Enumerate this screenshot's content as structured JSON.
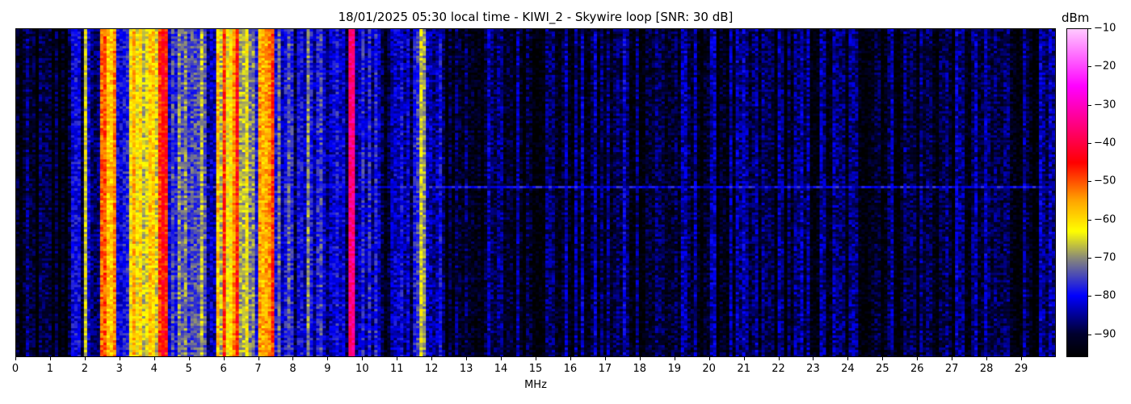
{
  "chart_data": {
    "type": "heatmap",
    "title": "18/01/2025 05:30 local time - KIWI_2 - Skywire loop [SNR: 30 dB]",
    "xlabel": "MHz",
    "ylabel": "",
    "xlim": [
      0,
      30
    ],
    "x_ticks": [
      "0",
      "1",
      "2",
      "3",
      "4",
      "5",
      "6",
      "7",
      "8",
      "9",
      "10",
      "11",
      "12",
      "13",
      "14",
      "15",
      "16",
      "17",
      "18",
      "19",
      "20",
      "21",
      "22",
      "23",
      "24",
      "25",
      "26",
      "27",
      "28",
      "29"
    ],
    "colorbar": {
      "label": "dBm",
      "range": [
        -96,
        -10
      ],
      "ticks": [
        "-10",
        "-20",
        "-30",
        "-40",
        "-50",
        "-60",
        "-70",
        "-80",
        "-90"
      ],
      "colormap": [
        {
          "dbm": -96,
          "color": "#000000"
        },
        {
          "dbm": -90,
          "color": "#00002e"
        },
        {
          "dbm": -80,
          "color": "#0000ff"
        },
        {
          "dbm": -70,
          "color": "#8a8a78"
        },
        {
          "dbm": -63,
          "color": "#ffff00"
        },
        {
          "dbm": -55,
          "color": "#ffa500"
        },
        {
          "dbm": -45,
          "color": "#ff0000"
        },
        {
          "dbm": -35,
          "color": "#ff0080"
        },
        {
          "dbm": -25,
          "color": "#ff00ff"
        },
        {
          "dbm": -10,
          "color": "#ffc8ff"
        }
      ]
    },
    "frequency_profile_dbm": [
      {
        "from": 0.0,
        "to": 1.5,
        "level": -93
      },
      {
        "from": 1.5,
        "to": 2.4,
        "level": -85
      },
      {
        "from": 2.4,
        "to": 2.9,
        "level": -57
      },
      {
        "from": 2.9,
        "to": 3.3,
        "level": -76
      },
      {
        "from": 3.3,
        "to": 4.1,
        "level": -63
      },
      {
        "from": 4.1,
        "to": 4.4,
        "level": -49
      },
      {
        "from": 4.4,
        "to": 4.6,
        "level": -76
      },
      {
        "from": 4.6,
        "to": 5.5,
        "level": -73
      },
      {
        "from": 5.5,
        "to": 5.8,
        "level": -79
      },
      {
        "from": 5.8,
        "to": 6.2,
        "level": -60
      },
      {
        "from": 6.2,
        "to": 6.4,
        "level": -50
      },
      {
        "from": 6.4,
        "to": 6.7,
        "level": -68
      },
      {
        "from": 6.7,
        "to": 7.0,
        "level": -73
      },
      {
        "from": 7.0,
        "to": 7.5,
        "level": -56
      },
      {
        "from": 7.5,
        "to": 8.0,
        "level": -79
      },
      {
        "from": 8.0,
        "to": 9.0,
        "level": -82
      },
      {
        "from": 9.0,
        "to": 9.55,
        "level": -84
      },
      {
        "from": 9.55,
        "to": 9.8,
        "level": -42
      },
      {
        "from": 9.8,
        "to": 10.5,
        "level": -82
      },
      {
        "from": 10.5,
        "to": 11.5,
        "level": -87
      },
      {
        "from": 11.5,
        "to": 11.85,
        "level": -72
      },
      {
        "from": 11.85,
        "to": 12.3,
        "level": -86
      },
      {
        "from": 12.3,
        "to": 30.0,
        "level": -90
      }
    ],
    "carriers": [
      {
        "freq": 2.0,
        "level": -65
      },
      {
        "freq": 2.6,
        "level": -50
      },
      {
        "freq": 4.25,
        "level": -45
      },
      {
        "freq": 6.0,
        "level": -48
      },
      {
        "freq": 7.4,
        "level": -48
      },
      {
        "freq": 8.45,
        "level": -70
      },
      {
        "freq": 9.7,
        "level": -35
      },
      {
        "freq": 11.7,
        "level": -65
      },
      {
        "freq": 17.6,
        "level": -82
      }
    ],
    "horizontal_events": [
      {
        "time_fraction": 0.48,
        "from": 2.5,
        "to": 30,
        "level": -80
      }
    ]
  }
}
